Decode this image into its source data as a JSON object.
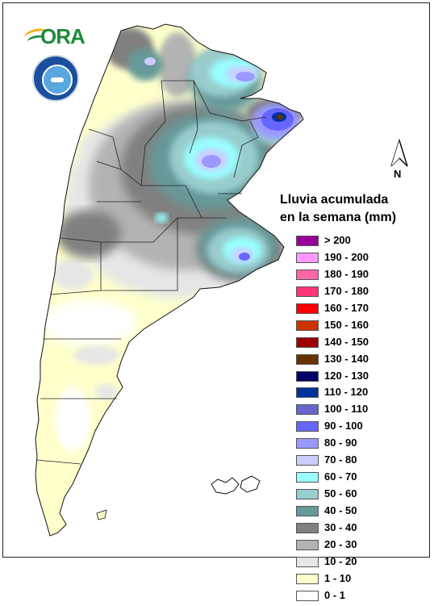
{
  "title_line1": "Lluvia acumulada",
  "title_line2": "en la semana (mm)",
  "north_label": "N",
  "logo_text": "ORA",
  "logos": {
    "ora": "ora-logo",
    "smn": "smn-logo"
  },
  "legend": [
    {
      "label": "> 200",
      "color": "#990099"
    },
    {
      "label": "190 - 200",
      "color": "#ff99ff"
    },
    {
      "label": "180 - 190",
      "color": "#ff66aa"
    },
    {
      "label": "170 - 180",
      "color": "#ff3377"
    },
    {
      "label": "160 - 170",
      "color": "#ff0000"
    },
    {
      "label": "150 - 160",
      "color": "#cc3300"
    },
    {
      "label": "140 - 150",
      "color": "#990000"
    },
    {
      "label": "130 - 140",
      "color": "#663300"
    },
    {
      "label": "120 - 130",
      "color": "#000066"
    },
    {
      "label": "110 - 120",
      "color": "#003399"
    },
    {
      "label": "100 - 110",
      "color": "#6666cc"
    },
    {
      "label": "90 - 100",
      "color": "#6666ff"
    },
    {
      "label": "80 - 90",
      "color": "#9999ff"
    },
    {
      "label": "70 - 80",
      "color": "#ccccff"
    },
    {
      "label": "60 - 70",
      "color": "#99ffff"
    },
    {
      "label": "50 - 60",
      "color": "#99cccc"
    },
    {
      "label": "40 - 50",
      "color": "#669999"
    },
    {
      "label": "30 - 40",
      "color": "#808080"
    },
    {
      "label": "20 - 30",
      "color": "#b3b3b3"
    },
    {
      "label": "10 - 20",
      "color": "#e6e6e6"
    },
    {
      "label": "1 - 10",
      "color": "#ffffcc"
    },
    {
      "label": "0 - 1",
      "color": "#ffffff"
    }
  ]
}
